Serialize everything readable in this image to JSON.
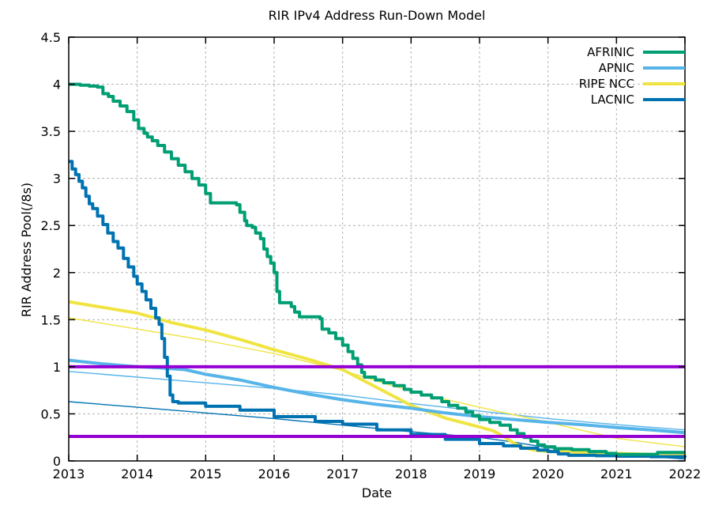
{
  "chart_data": {
    "type": "line",
    "title": "RIR IPv4 Address Run-Down Model",
    "xlabel": "Date",
    "ylabel": "RIR Address Pool(/8s)",
    "xlim": [
      2013,
      2022
    ],
    "ylim": [
      0,
      4.5
    ],
    "grid": "dashed gray, on",
    "x_ticks": {
      "values": [
        2013,
        2014,
        2015,
        2016,
        2017,
        2018,
        2019,
        2020,
        2021,
        2022
      ],
      "labels": [
        "2013",
        "2014",
        "2015",
        "2016",
        "2017",
        "2018",
        "2019",
        "2020",
        "2021",
        "2022"
      ]
    },
    "y_ticks": {
      "values": [
        0,
        0.5,
        1,
        1.5,
        2,
        2.5,
        3,
        3.5,
        4,
        4.5
      ],
      "labels": [
        "0",
        "0.5",
        "1",
        "1.5",
        "2",
        "2.5",
        "3",
        "3.5",
        "4",
        "4.5"
      ]
    },
    "legend": {
      "position": "top-right-inside",
      "entries": [
        {
          "label": "AFRINIC",
          "color": "#009E73"
        },
        {
          "label": "APNIC",
          "color": "#56B4E9"
        },
        {
          "label": "RIPE NCC",
          "color": "#F0E442"
        },
        {
          "label": "LACNIC",
          "color": "#0072B2"
        }
      ]
    },
    "colors": {
      "afrinic": "#009E73",
      "apnic": "#56B4E9",
      "ripencc": "#F0E442",
      "lacnic": "#0072B2",
      "threshold": "#9400D3",
      "grid": "#b3b3b3",
      "border": "#000000"
    },
    "series": [
      {
        "name": "APNIC model",
        "color": "#56B4E9",
        "width": 1.4,
        "style": "line",
        "points": [
          [
            2013,
            0.95
          ],
          [
            2014,
            0.89
          ],
          [
            2015,
            0.83
          ],
          [
            2016,
            0.77
          ],
          [
            2017,
            0.7
          ],
          [
            2018,
            0.61
          ],
          [
            2019,
            0.53
          ],
          [
            2020,
            0.45
          ],
          [
            2021,
            0.385
          ],
          [
            2022,
            0.33
          ]
        ]
      },
      {
        "name": "RIPE NCC model",
        "color": "#F0E442",
        "width": 1.4,
        "style": "line",
        "points": [
          [
            2013,
            1.52
          ],
          [
            2014,
            1.4
          ],
          [
            2015,
            1.28
          ],
          [
            2016,
            1.14
          ],
          [
            2017,
            0.96
          ],
          [
            2018,
            0.74
          ],
          [
            2019,
            0.57
          ],
          [
            2020,
            0.41
          ],
          [
            2021,
            0.24
          ],
          [
            2022,
            0.15
          ]
        ]
      },
      {
        "name": "LACNIC model",
        "color": "#0072B2",
        "width": 1.4,
        "style": "line",
        "points": [
          [
            2013,
            0.63
          ],
          [
            2014,
            0.57
          ],
          [
            2015,
            0.51
          ],
          [
            2016,
            0.45
          ],
          [
            2017,
            0.38
          ],
          [
            2018,
            0.31
          ],
          [
            2019,
            0.25
          ],
          [
            2019.5,
            0.2
          ],
          [
            2020,
            0.14
          ],
          [
            2020.5,
            0.105
          ],
          [
            2021,
            0.07
          ],
          [
            2021.5,
            0.045
          ],
          [
            2022,
            0.02
          ]
        ]
      },
      {
        "name": "RIPE NCC",
        "color": "#F0E442",
        "width": 4,
        "style": "line",
        "points": [
          [
            2013,
            1.69
          ],
          [
            2013.5,
            1.63
          ],
          [
            2014,
            1.57
          ],
          [
            2014.5,
            1.47
          ],
          [
            2015,
            1.39
          ],
          [
            2015.5,
            1.29
          ],
          [
            2016,
            1.18
          ],
          [
            2016.5,
            1.08
          ],
          [
            2017,
            0.97
          ],
          [
            2017.5,
            0.78
          ],
          [
            2018,
            0.59
          ],
          [
            2018.5,
            0.455
          ],
          [
            2019,
            0.36
          ],
          [
            2019.2,
            0.32
          ],
          [
            2019.35,
            0.26
          ],
          [
            2019.5,
            0.19
          ],
          [
            2019.65,
            0.14
          ],
          [
            2019.8,
            0.115
          ],
          [
            2020,
            0.1
          ],
          [
            2020.5,
            0.09
          ],
          [
            2021,
            0.08
          ],
          [
            2021.5,
            0.07
          ],
          [
            2022,
            0.06
          ]
        ]
      },
      {
        "name": "APNIC",
        "color": "#56B4E9",
        "width": 4,
        "style": "line",
        "points": [
          [
            2013,
            1.07
          ],
          [
            2013.5,
            1.03
          ],
          [
            2014,
            1.0
          ],
          [
            2014.3,
            0.99
          ],
          [
            2014.7,
            0.97
          ],
          [
            2015,
            0.92
          ],
          [
            2015.5,
            0.86
          ],
          [
            2016,
            0.78
          ],
          [
            2016.5,
            0.71
          ],
          [
            2017,
            0.65
          ],
          [
            2017.5,
            0.6
          ],
          [
            2018,
            0.56
          ],
          [
            2018.5,
            0.51
          ],
          [
            2019,
            0.47
          ],
          [
            2019.5,
            0.44
          ],
          [
            2020,
            0.41
          ],
          [
            2020.5,
            0.385
          ],
          [
            2021,
            0.355
          ],
          [
            2021.5,
            0.33
          ],
          [
            2022,
            0.3
          ]
        ]
      },
      {
        "name": "LACNIC",
        "color": "#0072B2",
        "width": 4,
        "style": "steps",
        "points": [
          [
            2013,
            3.18
          ],
          [
            2013.05,
            3.1
          ],
          [
            2013.1,
            3.04
          ],
          [
            2013.15,
            2.97
          ],
          [
            2013.2,
            2.9
          ],
          [
            2013.25,
            2.81
          ],
          [
            2013.3,
            2.73
          ],
          [
            2013.35,
            2.68
          ],
          [
            2013.42,
            2.6
          ],
          [
            2013.5,
            2.51
          ],
          [
            2013.57,
            2.42
          ],
          [
            2013.65,
            2.33
          ],
          [
            2013.72,
            2.26
          ],
          [
            2013.8,
            2.15
          ],
          [
            2013.87,
            2.06
          ],
          [
            2013.95,
            1.96
          ],
          [
            2014,
            1.88
          ],
          [
            2014.07,
            1.8
          ],
          [
            2014.13,
            1.71
          ],
          [
            2014.2,
            1.62
          ],
          [
            2014.27,
            1.52
          ],
          [
            2014.32,
            1.45
          ],
          [
            2014.36,
            1.3
          ],
          [
            2014.4,
            1.1
          ],
          [
            2014.44,
            0.9
          ],
          [
            2014.48,
            0.7
          ],
          [
            2014.52,
            0.63
          ],
          [
            2014.6,
            0.615
          ],
          [
            2015,
            0.58
          ],
          [
            2015.5,
            0.54
          ],
          [
            2016,
            0.47
          ],
          [
            2016.6,
            0.42
          ],
          [
            2017,
            0.39
          ],
          [
            2017.5,
            0.33
          ],
          [
            2018,
            0.28
          ],
          [
            2018.5,
            0.23
          ],
          [
            2019,
            0.185
          ],
          [
            2019.35,
            0.16
          ],
          [
            2019.6,
            0.135
          ],
          [
            2019.85,
            0.115
          ],
          [
            2020,
            0.1
          ],
          [
            2020.15,
            0.075
          ],
          [
            2020.3,
            0.06
          ],
          [
            2020.7,
            0.055
          ],
          [
            2021,
            0.05
          ],
          [
            2021.5,
            0.045
          ],
          [
            2022,
            0.035
          ]
        ]
      },
      {
        "name": "AFRINIC",
        "color": "#009E73",
        "width": 4,
        "style": "steps",
        "points": [
          [
            2013,
            4.0
          ],
          [
            2013.17,
            3.99
          ],
          [
            2013.3,
            3.98
          ],
          [
            2013.42,
            3.97
          ],
          [
            2013.5,
            3.9
          ],
          [
            2013.58,
            3.87
          ],
          [
            2013.65,
            3.82
          ],
          [
            2013.75,
            3.77
          ],
          [
            2013.85,
            3.71
          ],
          [
            2013.95,
            3.62
          ],
          [
            2014.02,
            3.53
          ],
          [
            2014.1,
            3.48
          ],
          [
            2014.15,
            3.44
          ],
          [
            2014.22,
            3.4
          ],
          [
            2014.3,
            3.35
          ],
          [
            2014.4,
            3.28
          ],
          [
            2014.5,
            3.21
          ],
          [
            2014.6,
            3.14
          ],
          [
            2014.7,
            3.07
          ],
          [
            2014.8,
            3.0
          ],
          [
            2014.9,
            2.93
          ],
          [
            2015,
            2.84
          ],
          [
            2015.07,
            2.74
          ],
          [
            2015.45,
            2.72
          ],
          [
            2015.5,
            2.64
          ],
          [
            2015.57,
            2.55
          ],
          [
            2015.6,
            2.5
          ],
          [
            2015.68,
            2.48
          ],
          [
            2015.73,
            2.42
          ],
          [
            2015.8,
            2.36
          ],
          [
            2015.85,
            2.25
          ],
          [
            2015.9,
            2.17
          ],
          [
            2015.95,
            2.1
          ],
          [
            2016,
            2.0
          ],
          [
            2016.04,
            1.8
          ],
          [
            2016.08,
            1.68
          ],
          [
            2016.25,
            1.64
          ],
          [
            2016.3,
            1.58
          ],
          [
            2016.37,
            1.53
          ],
          [
            2016.67,
            1.51
          ],
          [
            2016.7,
            1.4
          ],
          [
            2016.8,
            1.36
          ],
          [
            2016.9,
            1.3
          ],
          [
            2017,
            1.23
          ],
          [
            2017.08,
            1.16
          ],
          [
            2017.15,
            1.09
          ],
          [
            2017.22,
            1.02
          ],
          [
            2017.28,
            0.94
          ],
          [
            2017.32,
            0.89
          ],
          [
            2017.48,
            0.86
          ],
          [
            2017.6,
            0.83
          ],
          [
            2017.75,
            0.8
          ],
          [
            2017.9,
            0.76
          ],
          [
            2018,
            0.73
          ],
          [
            2018.15,
            0.7
          ],
          [
            2018.3,
            0.67
          ],
          [
            2018.45,
            0.63
          ],
          [
            2018.55,
            0.59
          ],
          [
            2018.68,
            0.56
          ],
          [
            2018.8,
            0.52
          ],
          [
            2018.9,
            0.48
          ],
          [
            2019,
            0.44
          ],
          [
            2019.15,
            0.41
          ],
          [
            2019.3,
            0.38
          ],
          [
            2019.45,
            0.33
          ],
          [
            2019.55,
            0.29
          ],
          [
            2019.65,
            0.25
          ],
          [
            2019.75,
            0.21
          ],
          [
            2019.85,
            0.17
          ],
          [
            2019.95,
            0.15
          ],
          [
            2020.1,
            0.13
          ],
          [
            2020.35,
            0.12
          ],
          [
            2020.6,
            0.1
          ],
          [
            2020.85,
            0.08
          ],
          [
            2021,
            0.07
          ],
          [
            2021.4,
            0.07
          ],
          [
            2021.6,
            0.09
          ],
          [
            2022,
            0.09
          ]
        ]
      },
      {
        "name": "threshold upper (1.0 /8)",
        "color": "#9400D3",
        "width": 4,
        "style": "line",
        "points": [
          [
            2013,
            1.0
          ],
          [
            2022,
            1.0
          ]
        ]
      },
      {
        "name": "threshold lower (0.26 /8)",
        "color": "#9400D3",
        "width": 4,
        "style": "line",
        "points": [
          [
            2013,
            0.26
          ],
          [
            2022,
            0.26
          ]
        ]
      }
    ]
  }
}
